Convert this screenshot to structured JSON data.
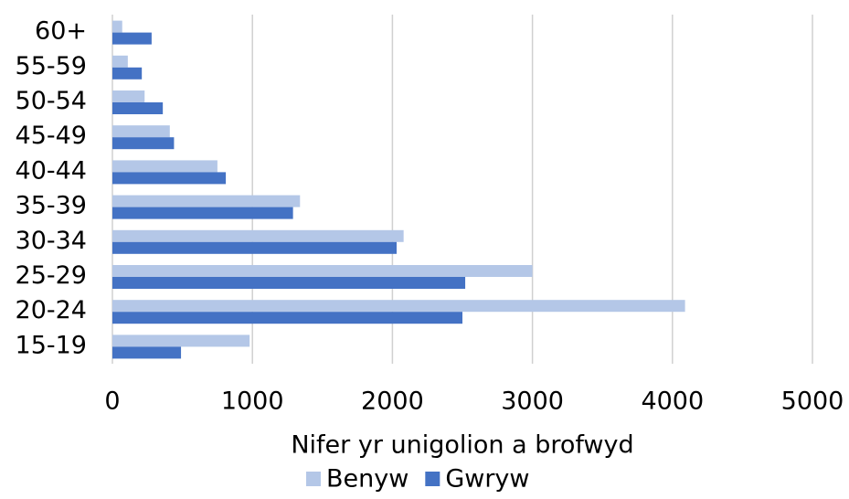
{
  "chart_data": {
    "type": "barh",
    "categories": [
      "15-19",
      "20-24",
      "25-29",
      "30-34",
      "35-39",
      "40-44",
      "45-49",
      "50-54",
      "55-59",
      "60+"
    ],
    "series": [
      {
        "name": "Benyw",
        "color": "#b4c7e7",
        "values": [
          980,
          4090,
          3000,
          2080,
          1340,
          750,
          410,
          230,
          110,
          70
        ]
      },
      {
        "name": "Gwryw",
        "color": "#4472c4",
        "values": [
          490,
          2500,
          2520,
          2030,
          1290,
          810,
          440,
          360,
          210,
          280
        ]
      }
    ],
    "xlim": [
      0,
      5000
    ],
    "xticks": [
      0,
      1000,
      2000,
      3000,
      4000,
      5000
    ],
    "xlabel": "Nifer yr unigolion a brofwyd",
    "grid": true,
    "legend": "bottom"
  }
}
